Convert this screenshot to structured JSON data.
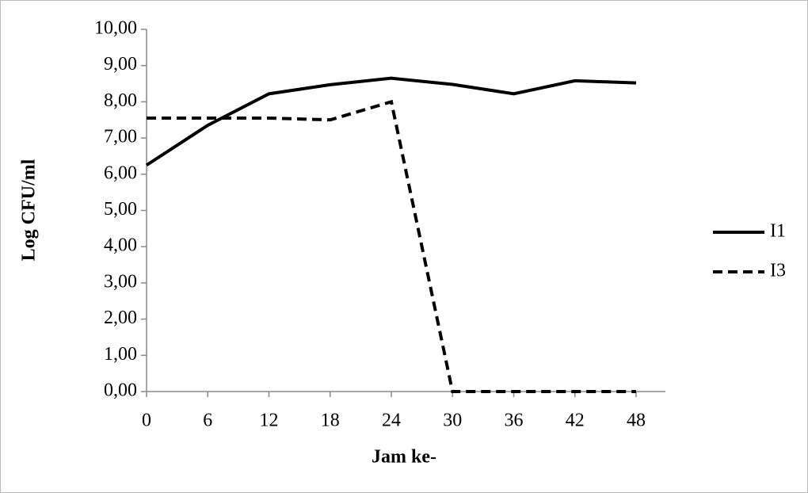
{
  "chart_data": {
    "type": "line",
    "x_label": "Jam ke-",
    "y_label": "Log CFU/ml",
    "x": [
      0,
      6,
      12,
      18,
      24,
      30,
      36,
      42,
      48
    ],
    "xlim": [
      0,
      48
    ],
    "xticks": [
      0,
      6,
      12,
      18,
      24,
      30,
      36,
      42,
      48
    ],
    "ylim": [
      0,
      10
    ],
    "yticks": [
      {
        "value": 0,
        "label": "0,00"
      },
      {
        "value": 1,
        "label": "1,00"
      },
      {
        "value": 2,
        "label": "2,00"
      },
      {
        "value": 3,
        "label": "3,00"
      },
      {
        "value": 4,
        "label": "4,00"
      },
      {
        "value": 5,
        "label": "5,00"
      },
      {
        "value": 6,
        "label": "6,00"
      },
      {
        "value": 7,
        "label": "7,00"
      },
      {
        "value": 8,
        "label": "8,00"
      },
      {
        "value": 9,
        "label": "9,00"
      },
      {
        "value": 10,
        "label": "10,00"
      }
    ],
    "legend": "right",
    "series": [
      {
        "name": "I1",
        "color": "#000000",
        "dash": "solid",
        "values": [
          6.25,
          7.35,
          8.22,
          8.47,
          8.65,
          8.48,
          8.22,
          8.58,
          8.52
        ]
      },
      {
        "name": "I3",
        "color": "#000000",
        "dash": "dashed",
        "values": [
          7.55,
          7.55,
          7.55,
          7.5,
          8.0,
          0,
          0,
          0,
          0
        ]
      }
    ]
  }
}
